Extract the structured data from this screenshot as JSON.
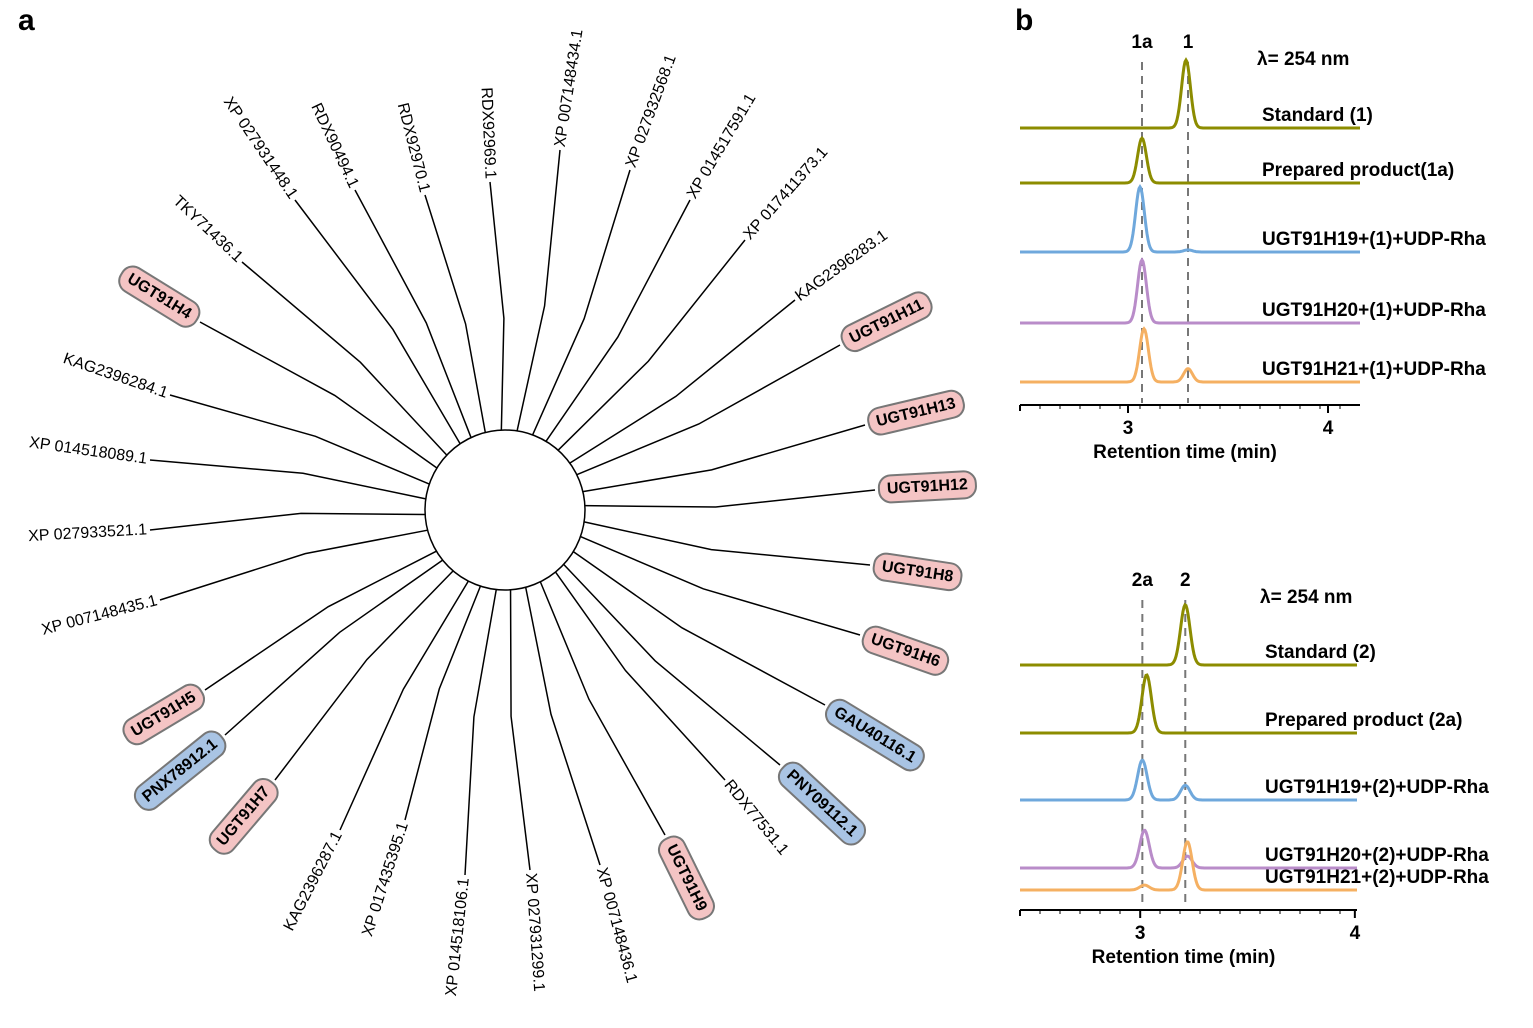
{
  "panel_a": {
    "label": "a",
    "leaves": [
      {
        "label": "TKY71436.1"
      },
      {
        "label": "XP 027931448.1"
      },
      {
        "label": "RDX90494.1"
      },
      {
        "label": "RDX92970.1"
      },
      {
        "label": "RDX92969.1"
      },
      {
        "label": "XP 007148434.1"
      },
      {
        "label": "XP 027932568.1"
      },
      {
        "label": "XP 014517591.1"
      },
      {
        "label": "XP 017411373.1"
      },
      {
        "label": "KAG2396283.1"
      },
      {
        "label": "UGT91H11",
        "fill": "#f4c4c4"
      },
      {
        "label": "UGT91H13",
        "fill": "#f4c4c4"
      },
      {
        "label": "UGT91H12",
        "fill": "#f4c4c4"
      },
      {
        "label": "UGT91H8",
        "fill": "#f4c4c4"
      },
      {
        "label": "UGT91H6",
        "fill": "#f4c4c4"
      },
      {
        "label": "GAU40116.1",
        "fill": "#a9c4e4"
      },
      {
        "label": "PNY09112.1",
        "fill": "#a9c4e4"
      },
      {
        "label": "RDX77531.1"
      },
      {
        "label": "UGT91H9",
        "fill": "#f4c4c4"
      },
      {
        "label": "XP 007148436.1"
      },
      {
        "label": "XP 027931299.1"
      },
      {
        "label": "XP 014518106.1"
      },
      {
        "label": "XP 017435395.1"
      },
      {
        "label": "KAG2396287.1"
      },
      {
        "label": "UGT91H7",
        "fill": "#f4c4c4"
      },
      {
        "label": "PNX78912.1",
        "fill": "#a9c4e4"
      },
      {
        "label": "UGT91H5",
        "fill": "#f4c4c4"
      },
      {
        "label": "XP 007148435.1"
      },
      {
        "label": "XP 027933521.1"
      },
      {
        "label": "XP 014518089.1"
      },
      {
        "label": "KAG2396284.1"
      },
      {
        "label": "UGT91H4",
        "fill": "#f4c4c4"
      }
    ]
  },
  "panel_b": {
    "label": "b",
    "charts": [
      {
        "type": "chromatogram",
        "wavelength": "λ= 254 nm",
        "xlabel": "Retention time (min)",
        "xlim": [
          2.46,
          4.16
        ],
        "xticks": [
          3,
          4
        ],
        "markers": [
          {
            "label": "1a",
            "x": 3.07
          },
          {
            "label": "1",
            "x": 3.3
          }
        ],
        "series": [
          {
            "name": "Standard (1)",
            "color": "#8c8c00",
            "peaks": [
              {
                "x": 3.29,
                "height": 97
              }
            ]
          },
          {
            "name": "Prepared product(1a)",
            "color": "#8c8c00",
            "peaks": [
              {
                "x": 3.07,
                "height": 64
              }
            ]
          },
          {
            "name": "UGT91H19+(1)+UDP-Rha",
            "color": "#6fa8dc",
            "peaks": [
              {
                "x": 3.06,
                "height": 93
              },
              {
                "x": 3.3,
                "height": 3
              }
            ]
          },
          {
            "name": "UGT91H20+(1)+UDP-Rha",
            "color": "#b98cc9",
            "peaks": [
              {
                "x": 3.07,
                "height": 90
              }
            ]
          },
          {
            "name": "UGT91H21+(1)+UDP-Rha",
            "color": "#f5b062",
            "peaks": [
              {
                "x": 3.08,
                "height": 76
              },
              {
                "x": 3.3,
                "height": 19
              }
            ]
          }
        ]
      },
      {
        "type": "chromatogram",
        "wavelength": "λ= 254 nm",
        "xlabel": "Retention time (min)",
        "xlim": [
          2.44,
          4.01
        ],
        "xticks": [
          3,
          4
        ],
        "markers": [
          {
            "label": "2a",
            "x": 3.01
          },
          {
            "label": "2",
            "x": 3.21
          }
        ],
        "series": [
          {
            "name": "Standard (2)",
            "color": "#8c8c00",
            "peaks": [
              {
                "x": 3.21,
                "height": 86
              }
            ]
          },
          {
            "name": "Prepared product (2a)",
            "color": "#8c8c00",
            "peaks": [
              {
                "x": 3.03,
                "height": 83
              }
            ]
          },
          {
            "name": "UGT91H19+(2)+UDP-Rha",
            "color": "#6fa8dc",
            "peaks": [
              {
                "x": 3.01,
                "height": 57
              },
              {
                "x": 3.21,
                "height": 21
              }
            ]
          },
          {
            "name": "UGT91H20+(2)+UDP-Rha",
            "color": "#b98cc9",
            "peaks": [
              {
                "x": 3.02,
                "height": 54
              },
              {
                "x": 3.22,
                "height": 17
              }
            ]
          },
          {
            "name": "UGT91H21+(2)+UDP-Rha",
            "color": "#f5b062",
            "peaks": [
              {
                "x": 3.02,
                "height": 7
              },
              {
                "x": 3.22,
                "height": 69
              }
            ]
          }
        ]
      }
    ]
  }
}
